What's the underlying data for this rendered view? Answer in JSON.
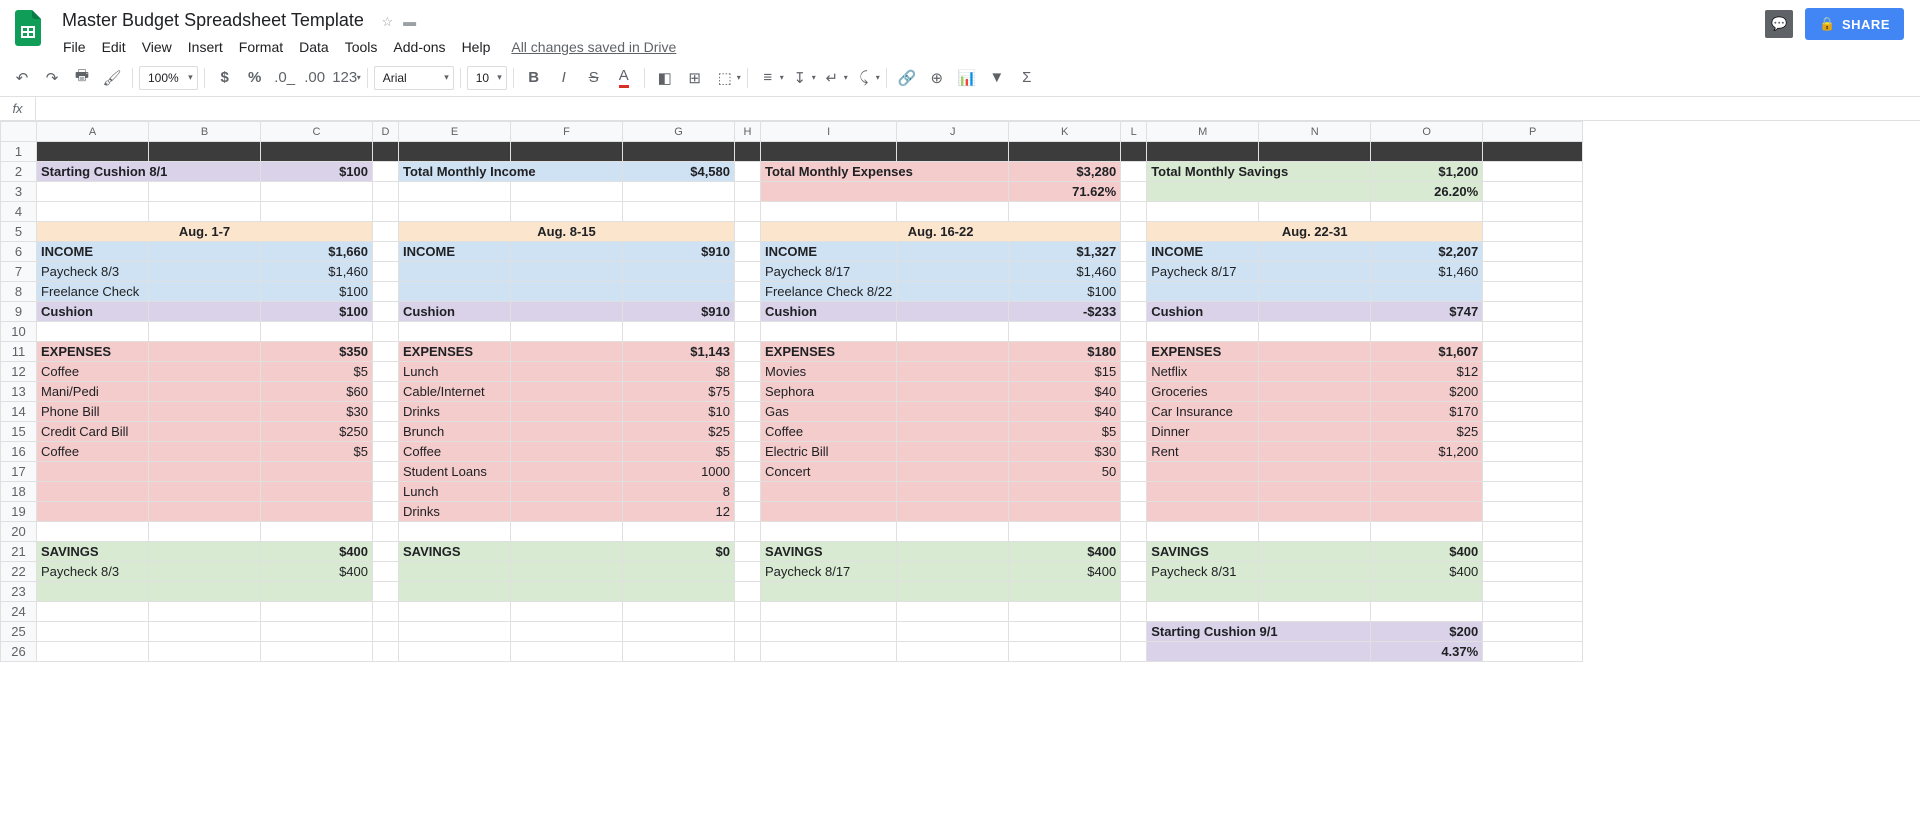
{
  "doc_title": "Master Budget Spreadsheet Template",
  "menus": [
    "File",
    "Edit",
    "View",
    "Insert",
    "Format",
    "Data",
    "Tools",
    "Add-ons",
    "Help"
  ],
  "save_status": "All changes saved in Drive",
  "share_label": "SHARE",
  "toolbar": {
    "zoom": "100%",
    "font": "Arial",
    "font_size": "10",
    "num_format": "123"
  },
  "columns": [
    "A",
    "B",
    "C",
    "D",
    "E",
    "F",
    "G",
    "H",
    "I",
    "J",
    "K",
    "L",
    "M",
    "N",
    "O",
    "P"
  ],
  "col_widths": [
    "w-a",
    "w-b",
    "w-c",
    "w-d",
    "w-e",
    "w-f",
    "w-g",
    "w-h",
    "w-i",
    "w-j",
    "w-k",
    "w-l",
    "w-m",
    "w-n",
    "w-o",
    "w-p"
  ],
  "row_count": 26,
  "cells": {
    "2": {
      "A": {
        "v": "Starting Cushion 8/1",
        "cl": "c-purple bold",
        "span": 2
      },
      "C": {
        "v": "$100",
        "cl": "c-purple bold right"
      },
      "E": {
        "v": "Total Monthly Income",
        "cl": "c-blue bold",
        "span": 2
      },
      "G": {
        "v": "$4,580",
        "cl": "c-blue bold right"
      },
      "I": {
        "v": "Total Monthly Expenses",
        "cl": "c-red bold",
        "span": 2
      },
      "K": {
        "v": "$3,280",
        "cl": "c-red bold right"
      },
      "M": {
        "v": "Total Monthly Savings",
        "cl": "c-green bold",
        "span": 2
      },
      "O": {
        "v": "$1,200",
        "cl": "c-green bold right"
      }
    },
    "3": {
      "I": {
        "v": "",
        "cl": "c-red",
        "span": 2
      },
      "K": {
        "v": "71.62%",
        "cl": "c-red bold right"
      },
      "M": {
        "v": "",
        "cl": "c-green",
        "span": 2
      },
      "O": {
        "v": "26.20%",
        "cl": "c-green bold right"
      }
    },
    "5": {
      "A": {
        "v": "Aug. 1-7",
        "cl": "c-cream bold center",
        "span": 3
      },
      "E": {
        "v": "Aug. 8-15",
        "cl": "c-cream bold center",
        "span": 3
      },
      "I": {
        "v": "Aug. 16-22",
        "cl": "c-cream bold center",
        "span": 3
      },
      "M": {
        "v": "Aug. 22-31",
        "cl": "c-cream bold center",
        "span": 3
      }
    },
    "6": {
      "A": {
        "v": "INCOME",
        "cl": "c-blue bold"
      },
      "B": {
        "v": "",
        "cl": "c-blue"
      },
      "C": {
        "v": "$1,660",
        "cl": "c-blue bold right"
      },
      "E": {
        "v": "INCOME",
        "cl": "c-blue bold"
      },
      "F": {
        "v": "",
        "cl": "c-blue"
      },
      "G": {
        "v": "$910",
        "cl": "c-blue bold right"
      },
      "I": {
        "v": "INCOME",
        "cl": "c-blue bold"
      },
      "J": {
        "v": "",
        "cl": "c-blue"
      },
      "K": {
        "v": "$1,327",
        "cl": "c-blue bold right"
      },
      "M": {
        "v": "INCOME",
        "cl": "c-blue bold"
      },
      "N": {
        "v": "",
        "cl": "c-blue"
      },
      "O": {
        "v": "$2,207",
        "cl": "c-blue bold right"
      }
    },
    "7": {
      "A": {
        "v": "Paycheck 8/3",
        "cl": "c-blue"
      },
      "B": {
        "v": "",
        "cl": "c-blue"
      },
      "C": {
        "v": "$1,460",
        "cl": "c-blue right"
      },
      "E": {
        "v": "",
        "cl": "c-blue"
      },
      "F": {
        "v": "",
        "cl": "c-blue"
      },
      "G": {
        "v": "",
        "cl": "c-blue"
      },
      "I": {
        "v": "Paycheck 8/17",
        "cl": "c-blue"
      },
      "J": {
        "v": "",
        "cl": "c-blue"
      },
      "K": {
        "v": "$1,460",
        "cl": "c-blue right"
      },
      "M": {
        "v": "Paycheck 8/17",
        "cl": "c-blue"
      },
      "N": {
        "v": "",
        "cl": "c-blue"
      },
      "O": {
        "v": "$1,460",
        "cl": "c-blue right"
      }
    },
    "8": {
      "A": {
        "v": "Freelance Check",
        "cl": "c-blue"
      },
      "B": {
        "v": "",
        "cl": "c-blue"
      },
      "C": {
        "v": "$100",
        "cl": "c-blue right"
      },
      "E": {
        "v": "",
        "cl": "c-blue"
      },
      "F": {
        "v": "",
        "cl": "c-blue"
      },
      "G": {
        "v": "",
        "cl": "c-blue"
      },
      "I": {
        "v": "Freelance Check 8/22",
        "cl": "c-blue"
      },
      "J": {
        "v": "",
        "cl": "c-blue"
      },
      "K": {
        "v": "$100",
        "cl": "c-blue right"
      },
      "M": {
        "v": "",
        "cl": "c-blue"
      },
      "N": {
        "v": "",
        "cl": "c-blue"
      },
      "O": {
        "v": "",
        "cl": "c-blue"
      }
    },
    "9": {
      "A": {
        "v": "Cushion",
        "cl": "c-purple bold"
      },
      "B": {
        "v": "",
        "cl": "c-purple"
      },
      "C": {
        "v": "$100",
        "cl": "c-purple bold right"
      },
      "E": {
        "v": "Cushion",
        "cl": "c-purple bold"
      },
      "F": {
        "v": "",
        "cl": "c-purple"
      },
      "G": {
        "v": "$910",
        "cl": "c-purple bold right"
      },
      "I": {
        "v": "Cushion",
        "cl": "c-purple bold"
      },
      "J": {
        "v": "",
        "cl": "c-purple"
      },
      "K": {
        "v": "-$233",
        "cl": "c-purple bold right"
      },
      "M": {
        "v": "Cushion",
        "cl": "c-purple bold"
      },
      "N": {
        "v": "",
        "cl": "c-purple"
      },
      "O": {
        "v": "$747",
        "cl": "c-purple bold right"
      }
    },
    "11": {
      "A": {
        "v": "EXPENSES",
        "cl": "c-red bold"
      },
      "B": {
        "v": "",
        "cl": "c-red"
      },
      "C": {
        "v": "$350",
        "cl": "c-red bold right"
      },
      "E": {
        "v": "EXPENSES",
        "cl": "c-red bold"
      },
      "F": {
        "v": "",
        "cl": "c-red"
      },
      "G": {
        "v": "$1,143",
        "cl": "c-red bold right"
      },
      "I": {
        "v": "EXPENSES",
        "cl": "c-red bold"
      },
      "J": {
        "v": "",
        "cl": "c-red"
      },
      "K": {
        "v": "$180",
        "cl": "c-red bold right"
      },
      "M": {
        "v": "EXPENSES",
        "cl": "c-red bold"
      },
      "N": {
        "v": "",
        "cl": "c-red"
      },
      "O": {
        "v": "$1,607",
        "cl": "c-red bold right"
      }
    },
    "12": {
      "A": {
        "v": "Coffee",
        "cl": "c-red"
      },
      "B": {
        "v": "",
        "cl": "c-red"
      },
      "C": {
        "v": "$5",
        "cl": "c-red right"
      },
      "E": {
        "v": "Lunch",
        "cl": "c-red"
      },
      "F": {
        "v": "",
        "cl": "c-red"
      },
      "G": {
        "v": "$8",
        "cl": "c-red right"
      },
      "I": {
        "v": "Movies",
        "cl": "c-red"
      },
      "J": {
        "v": "",
        "cl": "c-red"
      },
      "K": {
        "v": "$15",
        "cl": "c-red right"
      },
      "M": {
        "v": "Netflix",
        "cl": "c-red"
      },
      "N": {
        "v": "",
        "cl": "c-red"
      },
      "O": {
        "v": "$12",
        "cl": "c-red right"
      }
    },
    "13": {
      "A": {
        "v": "Mani/Pedi",
        "cl": "c-red"
      },
      "B": {
        "v": "",
        "cl": "c-red"
      },
      "C": {
        "v": "$60",
        "cl": "c-red right"
      },
      "E": {
        "v": "Cable/Internet",
        "cl": "c-red"
      },
      "F": {
        "v": "",
        "cl": "c-red"
      },
      "G": {
        "v": "$75",
        "cl": "c-red right"
      },
      "I": {
        "v": "Sephora",
        "cl": "c-red"
      },
      "J": {
        "v": "",
        "cl": "c-red"
      },
      "K": {
        "v": "$40",
        "cl": "c-red right"
      },
      "M": {
        "v": "Groceries",
        "cl": "c-red"
      },
      "N": {
        "v": "",
        "cl": "c-red"
      },
      "O": {
        "v": "$200",
        "cl": "c-red right"
      }
    },
    "14": {
      "A": {
        "v": "Phone Bill",
        "cl": "c-red"
      },
      "B": {
        "v": "",
        "cl": "c-red"
      },
      "C": {
        "v": "$30",
        "cl": "c-red right"
      },
      "E": {
        "v": "Drinks",
        "cl": "c-red"
      },
      "F": {
        "v": "",
        "cl": "c-red"
      },
      "G": {
        "v": "$10",
        "cl": "c-red right"
      },
      "I": {
        "v": "Gas",
        "cl": "c-red"
      },
      "J": {
        "v": "",
        "cl": "c-red"
      },
      "K": {
        "v": "$40",
        "cl": "c-red right"
      },
      "M": {
        "v": "Car Insurance",
        "cl": "c-red"
      },
      "N": {
        "v": "",
        "cl": "c-red"
      },
      "O": {
        "v": "$170",
        "cl": "c-red right"
      }
    },
    "15": {
      "A": {
        "v": "Credit Card Bill",
        "cl": "c-red"
      },
      "B": {
        "v": "",
        "cl": "c-red"
      },
      "C": {
        "v": "$250",
        "cl": "c-red right"
      },
      "E": {
        "v": "Brunch",
        "cl": "c-red"
      },
      "F": {
        "v": "",
        "cl": "c-red"
      },
      "G": {
        "v": "$25",
        "cl": "c-red right"
      },
      "I": {
        "v": "Coffee",
        "cl": "c-red"
      },
      "J": {
        "v": "",
        "cl": "c-red"
      },
      "K": {
        "v": "$5",
        "cl": "c-red right"
      },
      "M": {
        "v": "Dinner",
        "cl": "c-red"
      },
      "N": {
        "v": "",
        "cl": "c-red"
      },
      "O": {
        "v": "$25",
        "cl": "c-red right"
      }
    },
    "16": {
      "A": {
        "v": "Coffee",
        "cl": "c-red"
      },
      "B": {
        "v": "",
        "cl": "c-red"
      },
      "C": {
        "v": "$5",
        "cl": "c-red right"
      },
      "E": {
        "v": "Coffee",
        "cl": "c-red"
      },
      "F": {
        "v": "",
        "cl": "c-red"
      },
      "G": {
        "v": "$5",
        "cl": "c-red right"
      },
      "I": {
        "v": "Electric Bill",
        "cl": "c-red"
      },
      "J": {
        "v": "",
        "cl": "c-red"
      },
      "K": {
        "v": "$30",
        "cl": "c-red right"
      },
      "M": {
        "v": "Rent",
        "cl": "c-red"
      },
      "N": {
        "v": "",
        "cl": "c-red"
      },
      "O": {
        "v": "$1,200",
        "cl": "c-red right"
      }
    },
    "17": {
      "A": {
        "v": "",
        "cl": "c-red"
      },
      "B": {
        "v": "",
        "cl": "c-red"
      },
      "C": {
        "v": "",
        "cl": "c-red"
      },
      "E": {
        "v": "Student Loans",
        "cl": "c-red"
      },
      "F": {
        "v": "",
        "cl": "c-red"
      },
      "G": {
        "v": "1000",
        "cl": "c-red right"
      },
      "I": {
        "v": "Concert",
        "cl": "c-red"
      },
      "J": {
        "v": "",
        "cl": "c-red"
      },
      "K": {
        "v": "50",
        "cl": "c-red right"
      },
      "M": {
        "v": "",
        "cl": "c-red"
      },
      "N": {
        "v": "",
        "cl": "c-red"
      },
      "O": {
        "v": "",
        "cl": "c-red"
      }
    },
    "18": {
      "A": {
        "v": "",
        "cl": "c-red"
      },
      "B": {
        "v": "",
        "cl": "c-red"
      },
      "C": {
        "v": "",
        "cl": "c-red"
      },
      "E": {
        "v": "Lunch",
        "cl": "c-red"
      },
      "F": {
        "v": "",
        "cl": "c-red"
      },
      "G": {
        "v": "8",
        "cl": "c-red right"
      },
      "I": {
        "v": "",
        "cl": "c-red"
      },
      "J": {
        "v": "",
        "cl": "c-red"
      },
      "K": {
        "v": "",
        "cl": "c-red"
      },
      "M": {
        "v": "",
        "cl": "c-red"
      },
      "N": {
        "v": "",
        "cl": "c-red"
      },
      "O": {
        "v": "",
        "cl": "c-red"
      }
    },
    "19": {
      "A": {
        "v": "",
        "cl": "c-red"
      },
      "B": {
        "v": "",
        "cl": "c-red"
      },
      "C": {
        "v": "",
        "cl": "c-red"
      },
      "E": {
        "v": "Drinks",
        "cl": "c-red"
      },
      "F": {
        "v": "",
        "cl": "c-red"
      },
      "G": {
        "v": "12",
        "cl": "c-red right"
      },
      "I": {
        "v": "",
        "cl": "c-red"
      },
      "J": {
        "v": "",
        "cl": "c-red"
      },
      "K": {
        "v": "",
        "cl": "c-red"
      },
      "M": {
        "v": "",
        "cl": "c-red"
      },
      "N": {
        "v": "",
        "cl": "c-red"
      },
      "O": {
        "v": "",
        "cl": "c-red"
      }
    },
    "21": {
      "A": {
        "v": "SAVINGS",
        "cl": "c-green bold"
      },
      "B": {
        "v": "",
        "cl": "c-green"
      },
      "C": {
        "v": "$400",
        "cl": "c-green bold right"
      },
      "E": {
        "v": "SAVINGS",
        "cl": "c-green bold"
      },
      "F": {
        "v": "",
        "cl": "c-green"
      },
      "G": {
        "v": "$0",
        "cl": "c-green bold right"
      },
      "I": {
        "v": "SAVINGS",
        "cl": "c-green bold"
      },
      "J": {
        "v": "",
        "cl": "c-green"
      },
      "K": {
        "v": "$400",
        "cl": "c-green bold right"
      },
      "M": {
        "v": "SAVINGS",
        "cl": "c-green bold"
      },
      "N": {
        "v": "",
        "cl": "c-green"
      },
      "O": {
        "v": "$400",
        "cl": "c-green bold right"
      }
    },
    "22": {
      "A": {
        "v": "Paycheck 8/3",
        "cl": "c-green"
      },
      "B": {
        "v": "",
        "cl": "c-green"
      },
      "C": {
        "v": "$400",
        "cl": "c-green right"
      },
      "E": {
        "v": "",
        "cl": "c-green"
      },
      "F": {
        "v": "",
        "cl": "c-green"
      },
      "G": {
        "v": "",
        "cl": "c-green"
      },
      "I": {
        "v": "Paycheck 8/17",
        "cl": "c-green"
      },
      "J": {
        "v": "",
        "cl": "c-green"
      },
      "K": {
        "v": "$400",
        "cl": "c-green right"
      },
      "M": {
        "v": "Paycheck 8/31",
        "cl": "c-green"
      },
      "N": {
        "v": "",
        "cl": "c-green"
      },
      "O": {
        "v": "$400",
        "cl": "c-green right"
      }
    },
    "23": {
      "A": {
        "v": "",
        "cl": "c-green"
      },
      "B": {
        "v": "",
        "cl": "c-green"
      },
      "C": {
        "v": "",
        "cl": "c-green"
      },
      "E": {
        "v": "",
        "cl": "c-green"
      },
      "F": {
        "v": "",
        "cl": "c-green"
      },
      "G": {
        "v": "",
        "cl": "c-green"
      },
      "I": {
        "v": "",
        "cl": "c-green"
      },
      "J": {
        "v": "",
        "cl": "c-green"
      },
      "K": {
        "v": "",
        "cl": "c-green"
      },
      "M": {
        "v": "",
        "cl": "c-green"
      },
      "N": {
        "v": "",
        "cl": "c-green"
      },
      "O": {
        "v": "",
        "cl": "c-green"
      }
    },
    "25": {
      "M": {
        "v": "Starting Cushion 9/1",
        "cl": "c-purple bold",
        "span": 2
      },
      "O": {
        "v": "$200",
        "cl": "c-purple bold right"
      }
    },
    "26": {
      "M": {
        "v": "",
        "cl": "c-purple",
        "span": 2
      },
      "O": {
        "v": "4.37%",
        "cl": "c-purple bold right"
      }
    }
  },
  "dark_row": 1
}
